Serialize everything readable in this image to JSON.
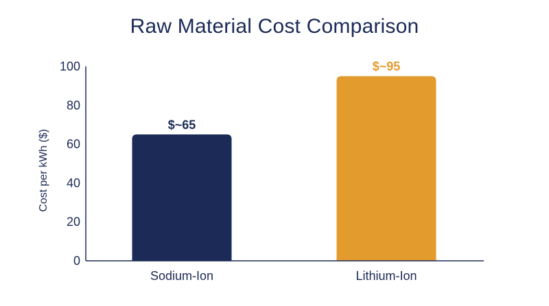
{
  "chart_data": {
    "type": "bar",
    "title": "Raw Material Cost Comparison",
    "xlabel": "",
    "ylabel": "Cost per kWh ($)",
    "ylim": [
      0,
      100
    ],
    "yticks": [
      0,
      20,
      40,
      60,
      80,
      100
    ],
    "grid": false,
    "categories": [
      "Sodium-Ion",
      "Lithium-Ion"
    ],
    "values": [
      65,
      95
    ],
    "data_labels": [
      "$~65",
      "$~95"
    ],
    "colors": [
      "#1b2a56",
      "#e39b2e"
    ]
  },
  "colors": {
    "text": "#1b2a56",
    "axis": "#1b2a56"
  }
}
